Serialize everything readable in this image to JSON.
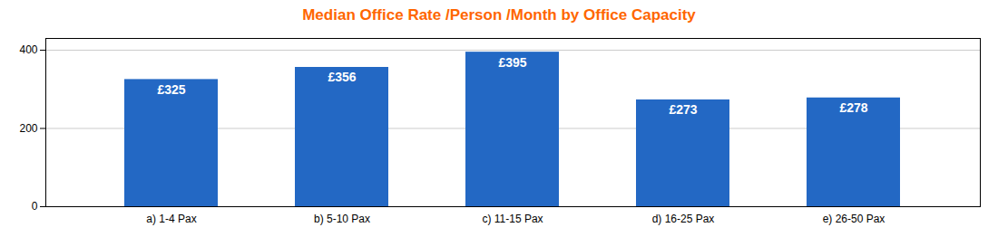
{
  "chart_data": {
    "type": "bar",
    "title": "Median Office Rate /Person /Month by Office Capacity",
    "categories": [
      "a) 1-4 Pax",
      "b) 5-10 Pax",
      "c) 11-15 Pax",
      "d) 16-25 Pax",
      "e) 26-50 Pax"
    ],
    "values": [
      325,
      356,
      395,
      273,
      278
    ],
    "value_labels": [
      "£325",
      "£356",
      "£395",
      "£273",
      "£278"
    ],
    "data_labels": true,
    "color": "#2368C4",
    "ylim": [
      0,
      430
    ],
    "yticks": [
      0,
      200,
      400
    ],
    "grid": true
  }
}
